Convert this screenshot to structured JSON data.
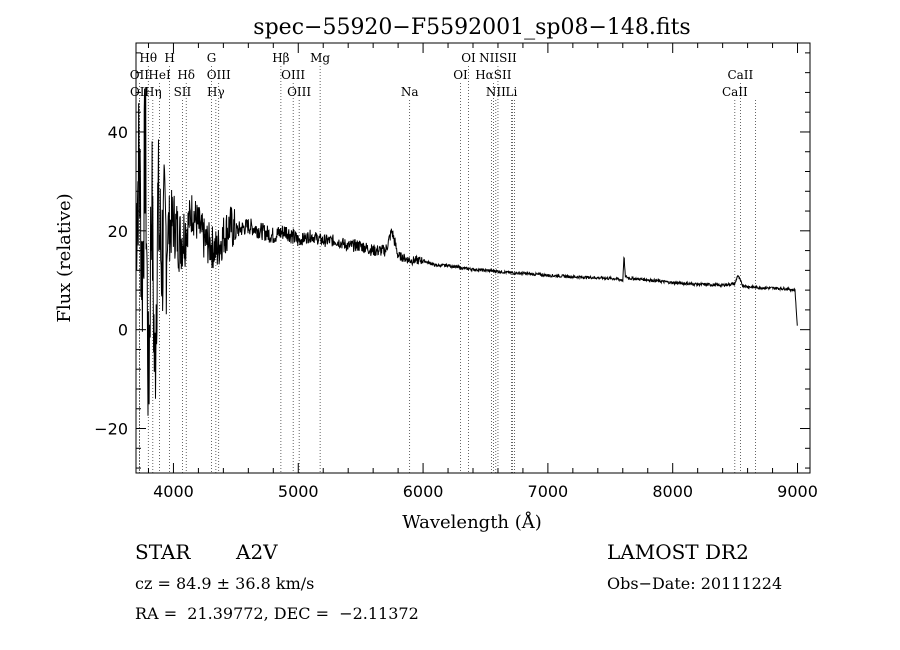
{
  "chart_data": {
    "type": "line",
    "title": "spec−55920−F5592001_sp08−148.fits",
    "xlabel": "Wavelength (Å)",
    "ylabel": "Flux (relative)",
    "xlim": [
      3700,
      9100
    ],
    "ylim": [
      -29,
      58
    ],
    "xticks": [
      4000,
      5000,
      6000,
      7000,
      8000,
      9000
    ],
    "yticks": [
      -20,
      0,
      20,
      40
    ],
    "xtick_labels": [
      "4000",
      "5000",
      "6000",
      "7000",
      "8000",
      "9000"
    ],
    "ytick_labels": [
      "−20",
      "0",
      "20",
      "40"
    ],
    "grid": false,
    "lines": [
      {
        "label": "Hθ",
        "wavelength": 3798,
        "row": 1
      },
      {
        "label": "H",
        "wavelength": 3969,
        "row": 1
      },
      {
        "label": "G",
        "wavelength": 4305,
        "row": 1
      },
      {
        "label": "Hβ",
        "wavelength": 4861,
        "row": 1
      },
      {
        "label": "Mg",
        "wavelength": 5175,
        "row": 1
      },
      {
        "label": "OI",
        "wavelength": 6364,
        "row": 1
      },
      {
        "label": "NIISII",
        "wavelength": 6600,
        "row": 1
      },
      {
        "label": "CaII",
        "wavelength": 8542,
        "row": 2
      },
      {
        "label": "OII",
        "wavelength": 3727,
        "row": 2
      },
      {
        "label": "HeI",
        "wavelength": 3889,
        "row": 2
      },
      {
        "label": "Hδ",
        "wavelength": 4102,
        "row": 2
      },
      {
        "label": "OIII",
        "wavelength": 4363,
        "row": 2
      },
      {
        "label": "OIII",
        "wavelength": 4959,
        "row": 2
      },
      {
        "label": "OI",
        "wavelength": 6300,
        "row": 2
      },
      {
        "label": "HαSII",
        "wavelength": 6563,
        "row": 2
      },
      {
        "label": "OII",
        "wavelength": 3729,
        "row": 3
      },
      {
        "label": "Hη",
        "wavelength": 3835,
        "row": 3
      },
      {
        "label": "SII",
        "wavelength": 4072,
        "row": 3
      },
      {
        "label": "Hγ",
        "wavelength": 4340,
        "row": 3
      },
      {
        "label": "OIII",
        "wavelength": 5007,
        "row": 3
      },
      {
        "label": "Na",
        "wavelength": 5893,
        "row": 3
      },
      {
        "label": "NII",
        "wavelength": 6583,
        "row": 3
      },
      {
        "label": "Li",
        "wavelength": 6708,
        "row": 3
      },
      {
        "label": "CaII",
        "wavelength": 8498,
        "row": 3
      }
    ],
    "extra_dotted_lines": [
      6548,
      6716,
      6731,
      8662
    ],
    "spectrum": {
      "name": "flux",
      "x": [
        3700,
        3725,
        3750,
        3775,
        3800,
        3825,
        3850,
        3875,
        3900,
        3950,
        4000,
        4050,
        4100,
        4150,
        4200,
        4250,
        4300,
        4350,
        4400,
        4450,
        4500,
        4600,
        4700,
        4800,
        4900,
        5000,
        5100,
        5200,
        5300,
        5400,
        5500,
        5600,
        5700,
        5750,
        5800,
        5900,
        6000,
        6100,
        6200,
        6300,
        6400,
        6500,
        6600,
        6700,
        6800,
        6900,
        7000,
        7200,
        7400,
        7550,
        7600,
        7610,
        7620,
        7650,
        7800,
        8000,
        8200,
        8400,
        8500,
        8520,
        8540,
        8560,
        8600,
        8700,
        8800,
        8900,
        8980,
        9000
      ],
      "y": [
        22,
        35,
        10,
        40,
        -15,
        30,
        -10,
        25,
        15,
        20,
        22,
        18,
        20,
        24,
        21,
        18,
        17,
        16,
        19,
        21,
        20,
        21,
        20,
        19,
        20,
        18,
        19,
        18,
        18,
        17,
        17,
        16,
        16,
        20,
        15,
        14,
        14,
        13,
        13,
        12.5,
        12.2,
        12,
        11.8,
        11.5,
        11.4,
        11.2,
        11,
        10.7,
        10.5,
        10.3,
        10,
        15,
        10.8,
        10.4,
        10.1,
        9.5,
        9.2,
        9,
        9.3,
        11,
        10,
        9,
        8.7,
        8.5,
        8.4,
        8.3,
        8,
        0
      ],
      "approximate": true
    }
  },
  "info": {
    "object_type": "STAR",
    "subclass": "A2V",
    "survey": "LAMOST DR2",
    "redshift": "cz = 84.9 ± 36.8 km/s",
    "obs_date": "Obs−Date: 20111224",
    "coords": "RA =  21.39772, DEC =  −2.11372"
  }
}
